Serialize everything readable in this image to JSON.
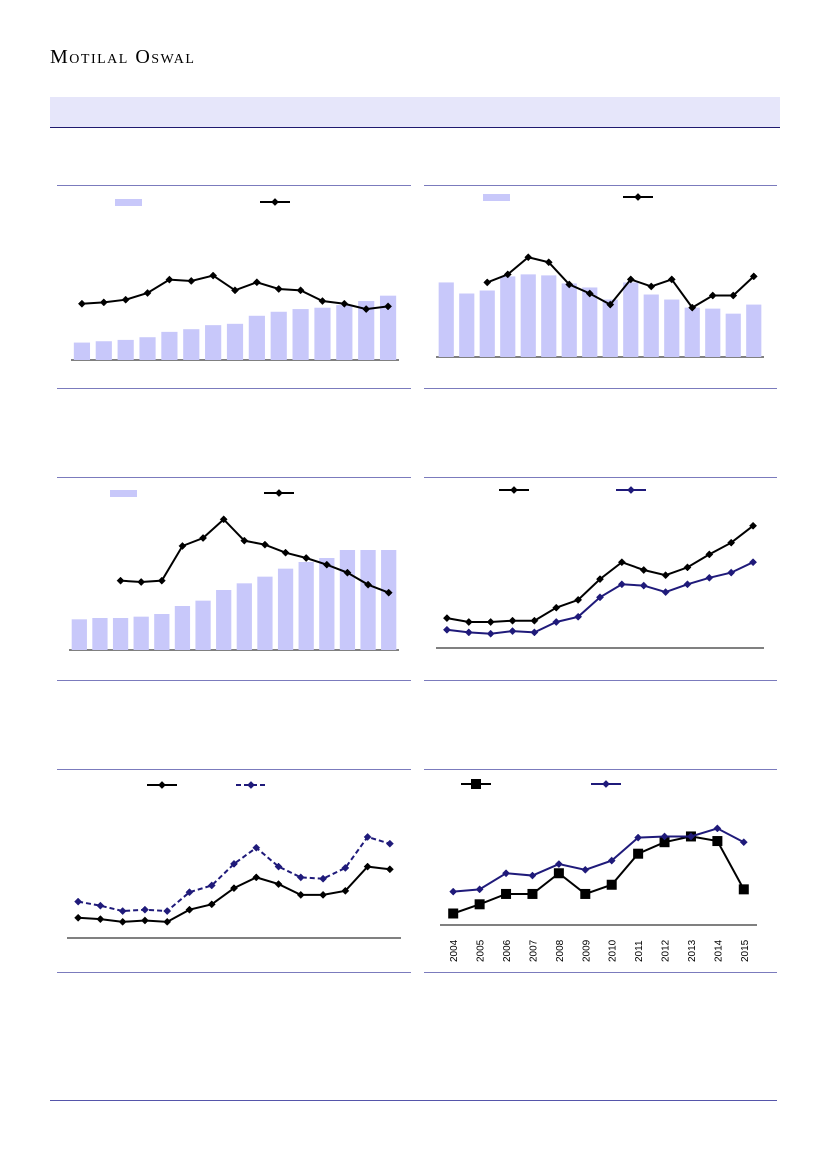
{
  "brand": {
    "logo_text": "Motilal Oswal",
    "band_color": "#e6e6fa",
    "rule_color": "#7b7bbd",
    "bar_color": "#c8c8fa",
    "line_color": "#000000",
    "series2_color": "#1f1a7a"
  },
  "chart_data": [
    {
      "id": "chart-1",
      "type": "bar+line",
      "title": "",
      "series": [
        {
          "name": "",
          "kind": "bar",
          "values": [
            13,
            14,
            15,
            17,
            21,
            23,
            26,
            27,
            33,
            36,
            38,
            39,
            41,
            44,
            48
          ]
        },
        {
          "name": "",
          "kind": "line",
          "values": [
            42,
            43,
            45,
            50,
            60,
            59,
            63,
            52,
            58,
            53,
            52,
            44,
            42,
            38,
            40
          ]
        }
      ],
      "ylim": [
        0,
        100
      ]
    },
    {
      "id": "chart-2",
      "type": "bar+line",
      "title": "",
      "series": [
        {
          "name": "",
          "kind": "bar",
          "values": [
            74,
            63,
            66,
            80,
            82,
            81,
            73,
            69,
            57,
            74,
            62,
            57,
            49,
            48,
            43,
            52
          ]
        },
        {
          "name": "",
          "kind": "line",
          "values": [
            null,
            null,
            74,
            82,
            99,
            94,
            72,
            63,
            52,
            77,
            70,
            77,
            49,
            61,
            61,
            80
          ]
        }
      ],
      "ylim": [
        0,
        130
      ]
    },
    {
      "id": "chart-3",
      "type": "bar+line",
      "title": "",
      "series": [
        {
          "name": "",
          "kind": "bar",
          "values": [
            23,
            24,
            24,
            25,
            27,
            33,
            37,
            45,
            50,
            55,
            61,
            66,
            69,
            75,
            75,
            75
          ]
        },
        {
          "name": "",
          "kind": "line",
          "values": [
            null,
            null,
            52,
            51,
            52,
            78,
            84,
            98,
            82,
            79,
            73,
            69,
            64,
            58,
            49,
            43
          ]
        }
      ],
      "ylim": [
        0,
        105
      ]
    },
    {
      "id": "chart-4",
      "type": "line",
      "title": "",
      "series": [
        {
          "name": "",
          "values": [
            23,
            20,
            20,
            21,
            21,
            31,
            37,
            53,
            66,
            60,
            56,
            62,
            72,
            81,
            94
          ]
        },
        {
          "name": "",
          "values": [
            14,
            12,
            11,
            13,
            12,
            20,
            24,
            39,
            49,
            48,
            43,
            49,
            54,
            58,
            66
          ]
        }
      ],
      "ylim": [
        0,
        100
      ]
    },
    {
      "id": "chart-5",
      "type": "line",
      "title": "",
      "series": [
        {
          "name": "",
          "style": "solid",
          "values": [
            15,
            14,
            12,
            13,
            12,
            21,
            25,
            37,
            45,
            40,
            32,
            32,
            35,
            53,
            51
          ]
        },
        {
          "name": "",
          "style": "dashed",
          "values": [
            27,
            24,
            20,
            21,
            20,
            34,
            39,
            55,
            67,
            53,
            45,
            44,
            52,
            75,
            70
          ]
        }
      ],
      "ylim": [
        0,
        95
      ]
    },
    {
      "id": "chart-6",
      "type": "line",
      "title": "",
      "categories": [
        "2004",
        "2005",
        "2006",
        "2007",
        "2008",
        "2009",
        "2010",
        "2011",
        "2012",
        "2013",
        "2014",
        "2015"
      ],
      "series": [
        {
          "name": "",
          "marker": "square",
          "values": [
            10,
            18,
            27,
            27,
            45,
            27,
            35,
            62,
            72,
            77,
            73,
            31
          ]
        },
        {
          "name": "",
          "marker": "diamond",
          "values": [
            29,
            31,
            45,
            43,
            53,
            48,
            56,
            76,
            77,
            77,
            84,
            72
          ]
        }
      ],
      "ylim": [
        0,
        100
      ]
    }
  ]
}
